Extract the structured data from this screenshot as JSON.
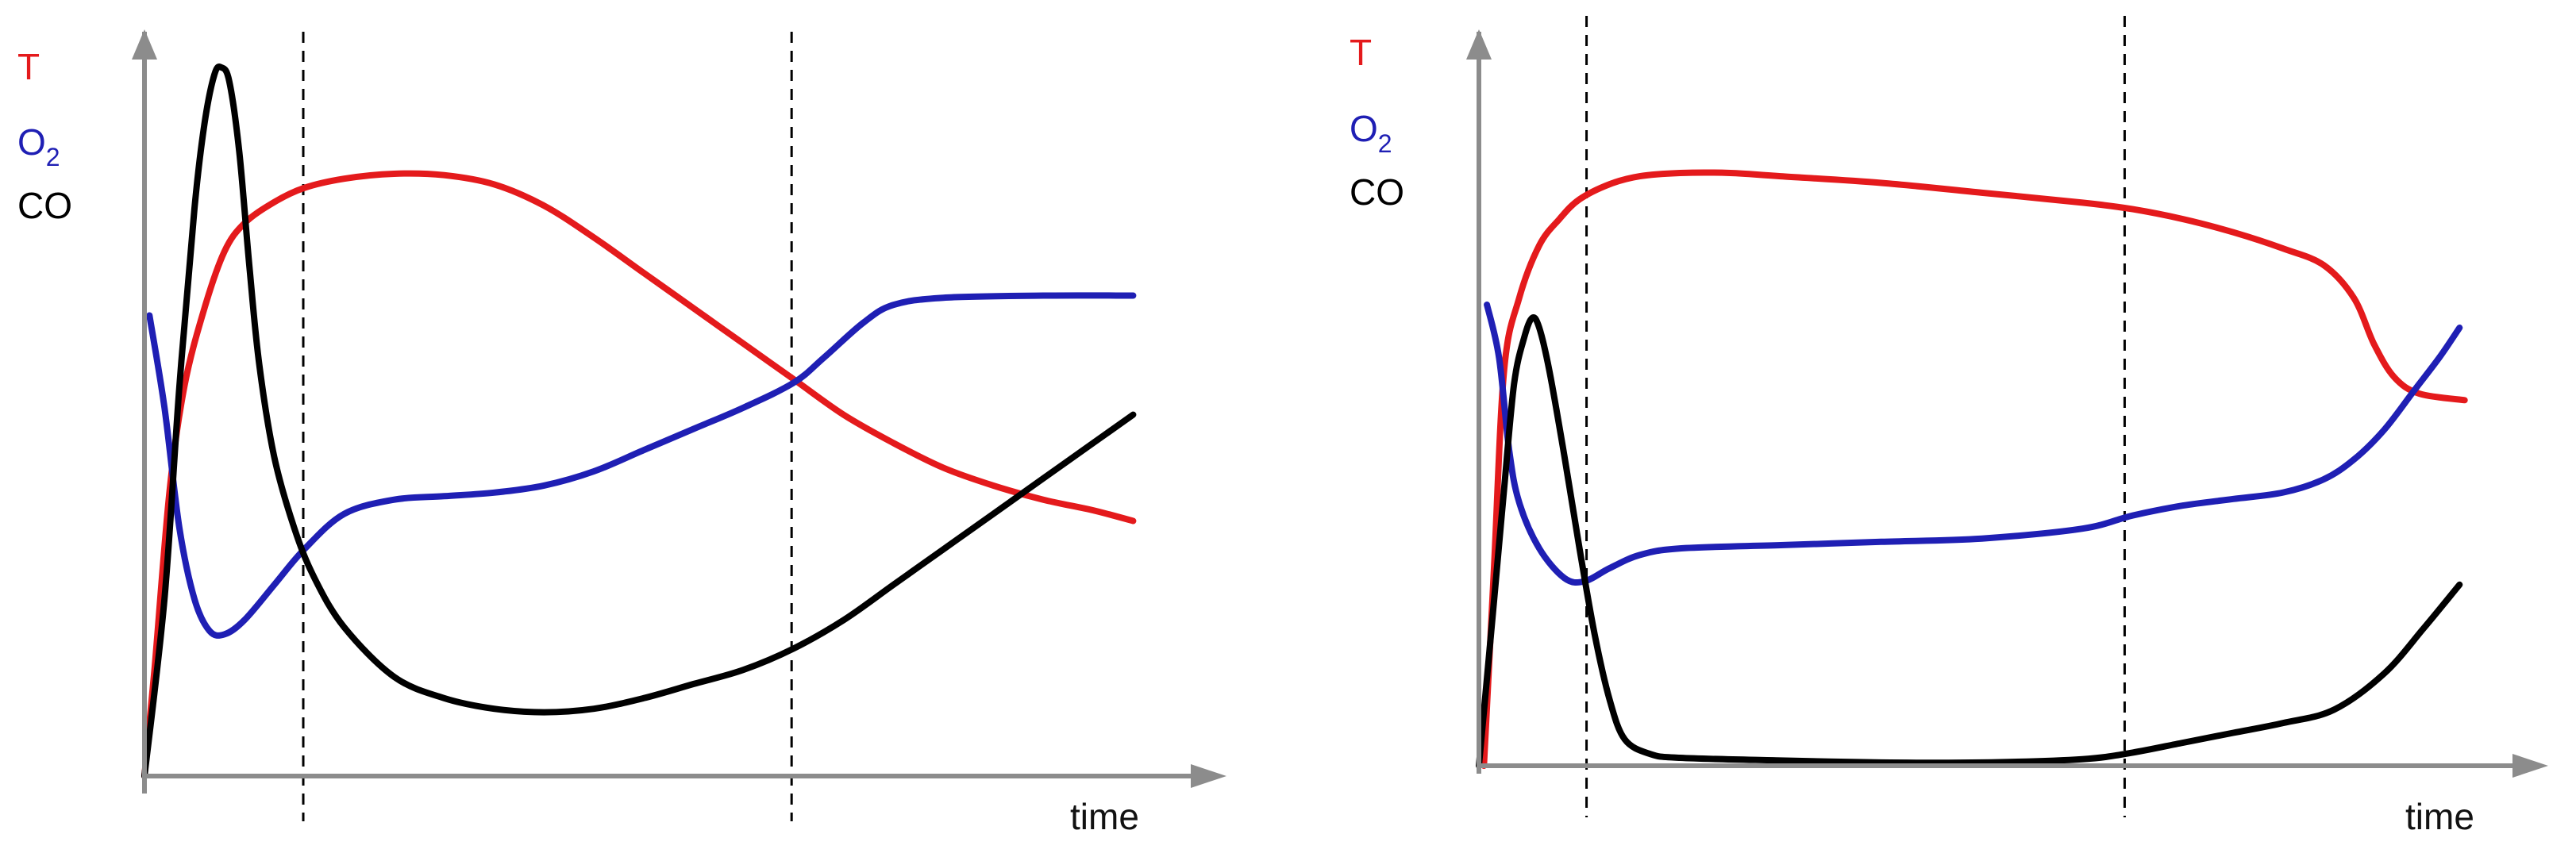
{
  "chart_data": [
    {
      "type": "line",
      "xlabel": "time",
      "ylabel": "",
      "xlim": [
        0,
        100
      ],
      "ylim": [
        0,
        100
      ],
      "grid": false,
      "legend": {
        "position": "top-left",
        "entries": [
          {
            "name": "T",
            "color": "#e41a1c"
          },
          {
            "name": "O",
            "sub": "2",
            "color": "#1f1fb4"
          },
          {
            "name": "CO",
            "color": "#000000"
          }
        ]
      },
      "phase_dividers_x": [
        15.9,
        64.8
      ],
      "series": [
        {
          "name": "T",
          "color": "#e41a1c",
          "points": [
            [
              0,
              0
            ],
            [
              1,
              15
            ],
            [
              2.5,
              40
            ],
            [
              4,
              55
            ],
            [
              6,
              66
            ],
            [
              8,
              74
            ],
            [
              10,
              78
            ],
            [
              13,
              81
            ],
            [
              16,
              83
            ],
            [
              20,
              84.3
            ],
            [
              25,
              85
            ],
            [
              30,
              84.8
            ],
            [
              35,
              83.5
            ],
            [
              40,
              80.5
            ],
            [
              45,
              76
            ],
            [
              50,
              71
            ],
            [
              55,
              66
            ],
            [
              60,
              61
            ],
            [
              65,
              56
            ],
            [
              70,
              51
            ],
            [
              75,
              47
            ],
            [
              80,
              43.5
            ],
            [
              85,
              41
            ],
            [
              90,
              39
            ],
            [
              95,
              37.5
            ],
            [
              99,
              36
            ]
          ]
        },
        {
          "name": "O2",
          "color": "#1f1fb4",
          "points": [
            [
              0.5,
              65
            ],
            [
              2,
              52
            ],
            [
              3.5,
              35
            ],
            [
              5,
              25
            ],
            [
              6.5,
              20.5
            ],
            [
              8,
              20
            ],
            [
              10,
              22
            ],
            [
              13,
              27
            ],
            [
              16,
              32
            ],
            [
              20,
              37
            ],
            [
              25,
              39
            ],
            [
              30,
              39.5
            ],
            [
              35,
              40
            ],
            [
              40,
              41
            ],
            [
              45,
              43
            ],
            [
              50,
              46
            ],
            [
              55,
              49
            ],
            [
              60,
              52
            ],
            [
              65,
              55.5
            ],
            [
              68,
              59
            ],
            [
              72,
              64
            ],
            [
              75,
              66.5
            ],
            [
              80,
              67.5
            ],
            [
              90,
              67.8
            ],
            [
              99,
              67.8
            ]
          ]
        },
        {
          "name": "CO",
          "color": "#000000",
          "points": [
            [
              0,
              0
            ],
            [
              2,
              25
            ],
            [
              3.5,
              55
            ],
            [
              5,
              80
            ],
            [
              6,
              92
            ],
            [
              7,
              99
            ],
            [
              7.7,
              100
            ],
            [
              8.5,
              98
            ],
            [
              9.5,
              88
            ],
            [
              10.5,
              72
            ],
            [
              11.5,
              58
            ],
            [
              13,
              45
            ],
            [
              15,
              35
            ],
            [
              17,
              28
            ],
            [
              20,
              21
            ],
            [
              25,
              14
            ],
            [
              30,
              11
            ],
            [
              35,
              9.5
            ],
            [
              40,
              9
            ],
            [
              45,
              9.5
            ],
            [
              50,
              11
            ],
            [
              55,
              13
            ],
            [
              60,
              15
            ],
            [
              65,
              18
            ],
            [
              70,
              22
            ],
            [
              75,
              27
            ],
            [
              80,
              32
            ],
            [
              85,
              37
            ],
            [
              90,
              42
            ],
            [
              95,
              47
            ],
            [
              99,
              51
            ]
          ]
        }
      ]
    },
    {
      "type": "line",
      "xlabel": "time",
      "ylabel": "",
      "xlim": [
        0,
        100
      ],
      "ylim": [
        0,
        100
      ],
      "grid": false,
      "legend": {
        "position": "top-left",
        "entries": [
          {
            "name": "T",
            "color": "#e41a1c"
          },
          {
            "name": "O",
            "sub": "2",
            "color": "#1f1fb4"
          },
          {
            "name": "CO",
            "color": "#000000"
          }
        ]
      },
      "phase_dividers_x": [
        10.7,
        64.2
      ],
      "series": [
        {
          "name": "T",
          "color": "#e41a1c",
          "points": [
            [
              0.5,
              0
            ],
            [
              1.5,
              30
            ],
            [
              2.5,
              60
            ],
            [
              4,
              71
            ],
            [
              6,
              79
            ],
            [
              8,
              83
            ],
            [
              10,
              86
            ],
            [
              13,
              88.3
            ],
            [
              16,
              89.5
            ],
            [
              20,
              90
            ],
            [
              25,
              90
            ],
            [
              30,
              89.5
            ],
            [
              40,
              88.5
            ],
            [
              50,
              87
            ],
            [
              60,
              85.5
            ],
            [
              65,
              84.5
            ],
            [
              70,
              83
            ],
            [
              75,
              81
            ],
            [
              80,
              78.5
            ],
            [
              84,
              76
            ],
            [
              87,
              71
            ],
            [
              89,
              64
            ],
            [
              91,
              59
            ],
            [
              93.5,
              56.5
            ],
            [
              98,
              55.5
            ]
          ]
        },
        {
          "name": "O2",
          "color": "#1f1fb4",
          "points": [
            [
              0.8,
              70
            ],
            [
              2,
              62
            ],
            [
              3,
              48
            ],
            [
              4,
              40
            ],
            [
              6,
              33
            ],
            [
              8.5,
              28.5
            ],
            [
              10.5,
              28
            ],
            [
              13,
              30
            ],
            [
              16,
              32
            ],
            [
              20,
              33
            ],
            [
              30,
              33.5
            ],
            [
              40,
              34
            ],
            [
              50,
              34.5
            ],
            [
              60,
              36
            ],
            [
              65,
              38
            ],
            [
              70,
              39.5
            ],
            [
              75,
              40.5
            ],
            [
              80,
              41.5
            ],
            [
              84,
              43.5
            ],
            [
              87,
              46.5
            ],
            [
              90,
              51
            ],
            [
              93,
              57
            ],
            [
              95.5,
              62
            ],
            [
              97.5,
              66.5
            ]
          ]
        },
        {
          "name": "CO",
          "color": "#000000",
          "points": [
            [
              0,
              0
            ],
            [
              1.5,
              25
            ],
            [
              2.5,
              42
            ],
            [
              3.5,
              58
            ],
            [
              4.5,
              65
            ],
            [
              5.3,
              68
            ],
            [
              6,
              66.5
            ],
            [
              7,
              60
            ],
            [
              8.5,
              47
            ],
            [
              10,
              33
            ],
            [
              11.5,
              20
            ],
            [
              13,
              10
            ],
            [
              14.5,
              4
            ],
            [
              17,
              1.8
            ],
            [
              20,
              1.2
            ],
            [
              30,
              0.8
            ],
            [
              40,
              0.5
            ],
            [
              50,
              0.5
            ],
            [
              60,
              1
            ],
            [
              65,
              2
            ],
            [
              70,
              3.5
            ],
            [
              75,
              5
            ],
            [
              80,
              6.5
            ],
            [
              85,
              8.5
            ],
            [
              90,
              14
            ],
            [
              94,
              21
            ],
            [
              97.5,
              27.5
            ]
          ]
        }
      ]
    }
  ]
}
